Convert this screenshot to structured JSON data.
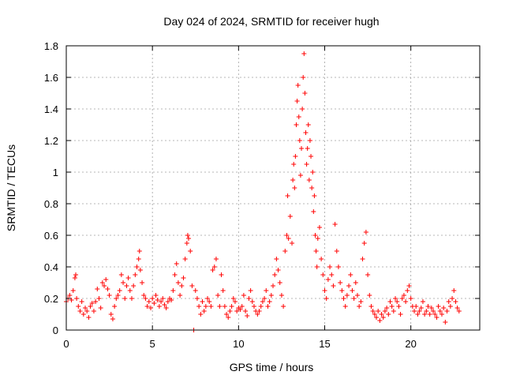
{
  "chart_data": {
    "type": "scatter",
    "title": "Day 024 of 2024, SRMTID for receiver hugh",
    "xlabel": "GPS time / hours",
    "ylabel": "SRMTID / TECUs",
    "xlim": [
      0,
      24
    ],
    "ylim": [
      0,
      1.8
    ],
    "xticks": [
      0,
      5,
      10,
      15,
      20
    ],
    "yticks": [
      0,
      0.2,
      0.4,
      0.6,
      0.8,
      1,
      1.2,
      1.4,
      1.6,
      1.8
    ],
    "xtick_labels": [
      "0",
      "5",
      "10",
      "15",
      "20"
    ],
    "ytick_labels": [
      "0",
      "0.2",
      "0.4",
      "0.6",
      "0.8",
      "1",
      "1.2",
      "1.4",
      "1.6",
      "1.8"
    ],
    "grid": true,
    "marker": "plus",
    "color": "#ff0000",
    "series": [
      {
        "name": "SRMTID",
        "points": [
          [
            0.0,
            0.18
          ],
          [
            0.1,
            0.2
          ],
          [
            0.2,
            0.22
          ],
          [
            0.3,
            0.19
          ],
          [
            0.4,
            0.25
          ],
          [
            0.5,
            0.33
          ],
          [
            0.55,
            0.35
          ],
          [
            0.6,
            0.2
          ],
          [
            0.7,
            0.15
          ],
          [
            0.8,
            0.12
          ],
          [
            0.9,
            0.18
          ],
          [
            1.0,
            0.1
          ],
          [
            1.1,
            0.14
          ],
          [
            1.2,
            0.12
          ],
          [
            1.3,
            0.08
          ],
          [
            1.4,
            0.15
          ],
          [
            1.5,
            0.17
          ],
          [
            1.6,
            0.12
          ],
          [
            1.7,
            0.18
          ],
          [
            1.8,
            0.26
          ],
          [
            1.9,
            0.2
          ],
          [
            2.0,
            0.14
          ],
          [
            2.1,
            0.3
          ],
          [
            2.2,
            0.28
          ],
          [
            2.3,
            0.32
          ],
          [
            2.4,
            0.26
          ],
          [
            2.5,
            0.22
          ],
          [
            2.6,
            0.1
          ],
          [
            2.7,
            0.07
          ],
          [
            2.8,
            0.15
          ],
          [
            2.9,
            0.2
          ],
          [
            3.0,
            0.22
          ],
          [
            3.1,
            0.25
          ],
          [
            3.2,
            0.35
          ],
          [
            3.3,
            0.3
          ],
          [
            3.4,
            0.2
          ],
          [
            3.5,
            0.28
          ],
          [
            3.6,
            0.33
          ],
          [
            3.7,
            0.25
          ],
          [
            3.8,
            0.2
          ],
          [
            3.9,
            0.28
          ],
          [
            4.0,
            0.35
          ],
          [
            4.1,
            0.4
          ],
          [
            4.2,
            0.45
          ],
          [
            4.25,
            0.5
          ],
          [
            4.3,
            0.38
          ],
          [
            4.4,
            0.3
          ],
          [
            4.5,
            0.22
          ],
          [
            4.6,
            0.2
          ],
          [
            4.7,
            0.15
          ],
          [
            4.8,
            0.18
          ],
          [
            4.9,
            0.14
          ],
          [
            5.0,
            0.2
          ],
          [
            5.1,
            0.17
          ],
          [
            5.2,
            0.22
          ],
          [
            5.3,
            0.19
          ],
          [
            5.4,
            0.15
          ],
          [
            5.5,
            0.18
          ],
          [
            5.6,
            0.2
          ],
          [
            5.7,
            0.16
          ],
          [
            5.8,
            0.14
          ],
          [
            5.9,
            0.18
          ],
          [
            6.0,
            0.2
          ],
          [
            6.1,
            0.19
          ],
          [
            6.2,
            0.25
          ],
          [
            6.3,
            0.35
          ],
          [
            6.4,
            0.42
          ],
          [
            6.5,
            0.3
          ],
          [
            6.6,
            0.22
          ],
          [
            6.7,
            0.28
          ],
          [
            6.8,
            0.33
          ],
          [
            6.9,
            0.45
          ],
          [
            7.0,
            0.55
          ],
          [
            7.05,
            0.6
          ],
          [
            7.1,
            0.58
          ],
          [
            7.2,
            0.5
          ],
          [
            7.3,
            0.28
          ],
          [
            7.4,
            0.0
          ],
          [
            7.5,
            0.25
          ],
          [
            7.6,
            0.2
          ],
          [
            7.7,
            0.15
          ],
          [
            7.8,
            0.1
          ],
          [
            7.9,
            0.18
          ],
          [
            8.0,
            0.12
          ],
          [
            8.1,
            0.15
          ],
          [
            8.2,
            0.2
          ],
          [
            8.3,
            0.18
          ],
          [
            8.4,
            0.15
          ],
          [
            8.5,
            0.38
          ],
          [
            8.6,
            0.4
          ],
          [
            8.7,
            0.45
          ],
          [
            8.8,
            0.22
          ],
          [
            8.9,
            0.15
          ],
          [
            9.0,
            0.35
          ],
          [
            9.1,
            0.25
          ],
          [
            9.2,
            0.15
          ],
          [
            9.3,
            0.1
          ],
          [
            9.4,
            0.08
          ],
          [
            9.5,
            0.12
          ],
          [
            9.6,
            0.15
          ],
          [
            9.7,
            0.2
          ],
          [
            9.8,
            0.18
          ],
          [
            9.9,
            0.12
          ],
          [
            10.0,
            0.14
          ],
          [
            10.1,
            0.13
          ],
          [
            10.2,
            0.15
          ],
          [
            10.3,
            0.22
          ],
          [
            10.4,
            0.12
          ],
          [
            10.5,
            0.09
          ],
          [
            10.6,
            0.2
          ],
          [
            10.7,
            0.25
          ],
          [
            10.8,
            0.18
          ],
          [
            10.9,
            0.15
          ],
          [
            11.0,
            0.12
          ],
          [
            11.1,
            0.1
          ],
          [
            11.2,
            0.12
          ],
          [
            11.3,
            0.15
          ],
          [
            11.4,
            0.18
          ],
          [
            11.5,
            0.2
          ],
          [
            11.6,
            0.25
          ],
          [
            11.7,
            0.15
          ],
          [
            11.8,
            0.18
          ],
          [
            11.9,
            0.22
          ],
          [
            12.0,
            0.28
          ],
          [
            12.1,
            0.35
          ],
          [
            12.2,
            0.45
          ],
          [
            12.3,
            0.38
          ],
          [
            12.4,
            0.3
          ],
          [
            12.5,
            0.22
          ],
          [
            12.6,
            0.15
          ],
          [
            12.7,
            0.5
          ],
          [
            12.8,
            0.6
          ],
          [
            12.85,
            0.85
          ],
          [
            12.9,
            0.58
          ],
          [
            13.0,
            0.72
          ],
          [
            13.1,
            0.55
          ],
          [
            13.15,
            0.95
          ],
          [
            13.2,
            1.05
          ],
          [
            13.25,
            0.9
          ],
          [
            13.3,
            1.1
          ],
          [
            13.35,
            1.3
          ],
          [
            13.4,
            1.45
          ],
          [
            13.45,
            1.55
          ],
          [
            13.5,
            1.35
          ],
          [
            13.55,
            1.2
          ],
          [
            13.6,
            0.98
          ],
          [
            13.65,
            1.15
          ],
          [
            13.7,
            1.4
          ],
          [
            13.75,
            1.6
          ],
          [
            13.8,
            1.75
          ],
          [
            13.85,
            1.5
          ],
          [
            13.9,
            1.25
          ],
          [
            13.95,
            1.05
          ],
          [
            14.0,
            1.15
          ],
          [
            14.05,
            1.3
          ],
          [
            14.1,
            0.95
          ],
          [
            14.15,
            1.2
          ],
          [
            14.2,
            1.1
          ],
          [
            14.25,
            0.9
          ],
          [
            14.3,
            1.0
          ],
          [
            14.35,
            0.75
          ],
          [
            14.4,
            0.85
          ],
          [
            14.45,
            0.6
          ],
          [
            14.5,
            0.5
          ],
          [
            14.55,
            0.4
          ],
          [
            14.6,
            0.58
          ],
          [
            14.7,
            0.65
          ],
          [
            14.8,
            0.45
          ],
          [
            14.9,
            0.35
          ],
          [
            15.0,
            0.25
          ],
          [
            15.1,
            0.2
          ],
          [
            15.2,
            0.32
          ],
          [
            15.3,
            0.4
          ],
          [
            15.4,
            0.35
          ],
          [
            15.5,
            0.28
          ],
          [
            15.6,
            0.67
          ],
          [
            15.7,
            0.5
          ],
          [
            15.8,
            0.4
          ],
          [
            15.9,
            0.3
          ],
          [
            16.0,
            0.25
          ],
          [
            16.1,
            0.2
          ],
          [
            16.2,
            0.15
          ],
          [
            16.3,
            0.22
          ],
          [
            16.4,
            0.28
          ],
          [
            16.5,
            0.35
          ],
          [
            16.6,
            0.25
          ],
          [
            16.7,
            0.2
          ],
          [
            16.8,
            0.3
          ],
          [
            16.9,
            0.22
          ],
          [
            17.0,
            0.15
          ],
          [
            17.1,
            0.18
          ],
          [
            17.2,
            0.45
          ],
          [
            17.3,
            0.55
          ],
          [
            17.4,
            0.62
          ],
          [
            17.5,
            0.35
          ],
          [
            17.6,
            0.22
          ],
          [
            17.7,
            0.15
          ],
          [
            17.8,
            0.12
          ],
          [
            17.9,
            0.1
          ],
          [
            18.0,
            0.08
          ],
          [
            18.1,
            0.12
          ],
          [
            18.2,
            0.06
          ],
          [
            18.3,
            0.1
          ],
          [
            18.4,
            0.08
          ],
          [
            18.5,
            0.12
          ],
          [
            18.6,
            0.14
          ],
          [
            18.7,
            0.1
          ],
          [
            18.8,
            0.18
          ],
          [
            18.9,
            0.15
          ],
          [
            19.0,
            0.12
          ],
          [
            19.1,
            0.2
          ],
          [
            19.2,
            0.18
          ],
          [
            19.3,
            0.15
          ],
          [
            19.4,
            0.1
          ],
          [
            19.5,
            0.2
          ],
          [
            19.6,
            0.22
          ],
          [
            19.7,
            0.18
          ],
          [
            19.8,
            0.25
          ],
          [
            19.9,
            0.28
          ],
          [
            20.0,
            0.2
          ],
          [
            20.1,
            0.15
          ],
          [
            20.2,
            0.12
          ],
          [
            20.3,
            0.15
          ],
          [
            20.4,
            0.1
          ],
          [
            20.5,
            0.12
          ],
          [
            20.6,
            0.14
          ],
          [
            20.7,
            0.18
          ],
          [
            20.8,
            0.1
          ],
          [
            20.9,
            0.12
          ],
          [
            21.0,
            0.15
          ],
          [
            21.1,
            0.1
          ],
          [
            21.2,
            0.14
          ],
          [
            21.3,
            0.12
          ],
          [
            21.4,
            0.1
          ],
          [
            21.5,
            0.08
          ],
          [
            21.6,
            0.15
          ],
          [
            21.7,
            0.12
          ],
          [
            21.8,
            0.1
          ],
          [
            21.9,
            0.14
          ],
          [
            22.0,
            0.05
          ],
          [
            22.1,
            0.12
          ],
          [
            22.2,
            0.18
          ],
          [
            22.3,
            0.15
          ],
          [
            22.4,
            0.2
          ],
          [
            22.5,
            0.25
          ],
          [
            22.6,
            0.18
          ],
          [
            22.7,
            0.14
          ],
          [
            22.8,
            0.12
          ]
        ]
      }
    ]
  }
}
